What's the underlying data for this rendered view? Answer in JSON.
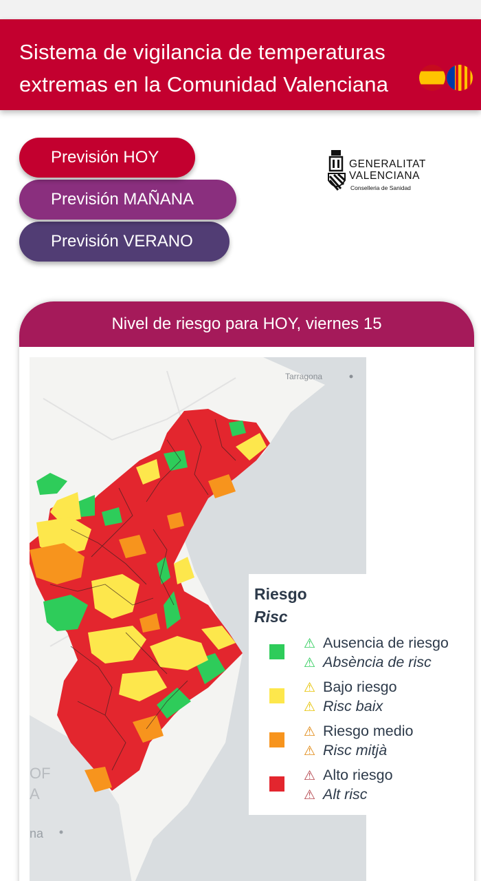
{
  "header": {
    "title": "Sistema de vigilancia de temperaturas extremas en la Comunidad Valenciana",
    "flags": [
      "spain-flag-icon",
      "valencia-flag-icon"
    ]
  },
  "nav": {
    "today": "Previsión HOY",
    "tomorrow": "Previsión MAÑANA",
    "summer": "Previsión VERANO"
  },
  "logo": {
    "line1": "GENERALITAT",
    "line2": "VALENCIANA",
    "line3": "Conselleria de Sanidad"
  },
  "panel": {
    "title": "Nivel de riesgo para HOY, viernes 15"
  },
  "map": {
    "labels": {
      "tarragona": "Tarragona",
      "left_top": "OF",
      "left_mid": "A",
      "left_bottom": "na"
    }
  },
  "legend": {
    "title": "Riesgo",
    "title_alt": "Risc",
    "items": [
      {
        "label": "Ausencia de riesgo",
        "label_alt": "Absència de risc",
        "color": "#2ecc5a",
        "icon": "warning-icon"
      },
      {
        "label": "Bajo riesgo",
        "label_alt": "Risc baix",
        "color": "#fde74c",
        "icon": "warning-icon"
      },
      {
        "label": "Riesgo medio",
        "label_alt": "Risc mitjà",
        "color": "#f7941d",
        "icon": "warning-icon"
      },
      {
        "label": "Alto riesgo",
        "label_alt": "Alt risc",
        "color": "#e3262e",
        "icon": "warning-icon"
      }
    ]
  }
}
